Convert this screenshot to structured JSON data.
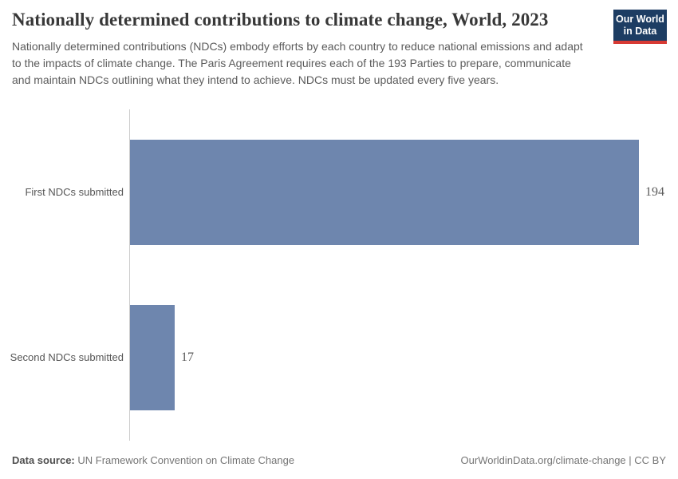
{
  "header": {
    "title": "Nationally determined contributions to climate change, World, 2023",
    "subtitle": "Nationally determined contributions (NDCs) embody efforts by each country to reduce national emissions and adapt to the impacts of climate change. The Paris Agreement requires each of the 193 Parties to prepare, communicate and maintain NDCs outlining what they intend to achieve. NDCs must be updated every five years.",
    "logo": {
      "line1": "Our World",
      "line2": "in Data",
      "bg_color": "#1d3d63",
      "accent_color": "#d73a34"
    }
  },
  "chart_data": {
    "type": "bar",
    "orientation": "horizontal",
    "categories": [
      "First NDCs submitted",
      "Second NDCs submitted"
    ],
    "values": [
      194,
      17
    ],
    "value_labels": [
      "194",
      "17"
    ],
    "title": "Nationally determined contributions to climate change, World, 2023",
    "xlabel": "",
    "ylabel": "",
    "xlim": [
      0,
      194
    ],
    "grid": false,
    "legend": false,
    "bar_color": "#6e86ae",
    "axis_line_color": "#cccccc"
  },
  "footer": {
    "data_source_label": "Data source:",
    "data_source_value": "UN Framework Convention on Climate Change",
    "attribution": "OurWorldinData.org/climate-change | CC BY"
  }
}
